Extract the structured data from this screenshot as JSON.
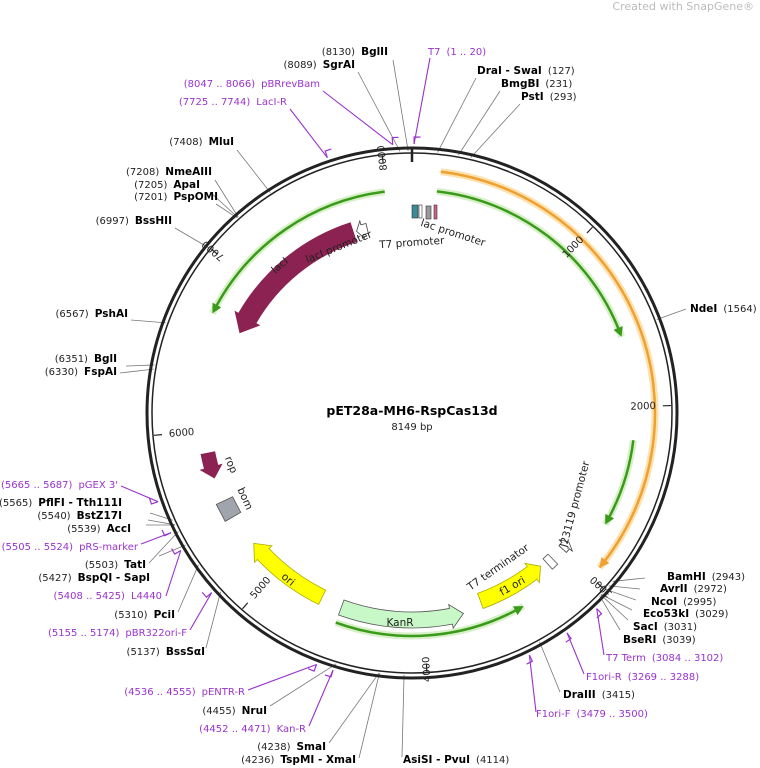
{
  "watermark": {
    "text": "Created with SnapGene®",
    "brand_color": "#f08080"
  },
  "plasmid": {
    "name": "pET28a-MH6-RspCas13d",
    "length_label": "8149 bp",
    "length_bp": 8149
  },
  "ruler": [
    "1000",
    "2000",
    "3000",
    "4000",
    "5000",
    "6000",
    "7000",
    "8000"
  ],
  "colors": {
    "primer": "#9933cc",
    "lacI": "#8b2252",
    "ori": "#ffff00",
    "KanR": "#c8f7c8",
    "orf_arc": "#f0a030",
    "green_arc": "#3a9a1a",
    "bom": "#a0a4ac"
  },
  "sites": [
    {
      "kind": "enzyme",
      "name": "BglII",
      "pos": "8130",
      "bp": 8130
    },
    {
      "kind": "enzyme",
      "name": "SgrAI",
      "pos": "8089",
      "bp": 8089
    },
    {
      "kind": "primer",
      "name": "pBRrevBam",
      "pos": "8047 .. 8066",
      "bp": 8056
    },
    {
      "kind": "primer",
      "name": "LacI-R",
      "pos": "7725 .. 7744",
      "bp": 7734
    },
    {
      "kind": "primer",
      "name": "T7",
      "pos": "1 .. 20",
      "bp": 10
    },
    {
      "kind": "enzyme",
      "name": "DraI  - SwaI",
      "pos": "127",
      "bp": 127
    },
    {
      "kind": "enzyme",
      "name": "BmgBI",
      "pos": "231",
      "bp": 231
    },
    {
      "kind": "enzyme",
      "name": "PstI",
      "pos": "293",
      "bp": 293
    },
    {
      "kind": "enzyme",
      "name": "MluI",
      "pos": "7408",
      "bp": 7408
    },
    {
      "kind": "enzyme",
      "name": "NmeAIII",
      "pos": "7208",
      "bp": 7208
    },
    {
      "kind": "enzyme",
      "name": "ApaI",
      "pos": "7205",
      "bp": 7205
    },
    {
      "kind": "enzyme",
      "name": "PspOMI",
      "pos": "7201",
      "bp": 7201
    },
    {
      "kind": "enzyme",
      "name": "BssHII",
      "pos": "6997",
      "bp": 6997
    },
    {
      "kind": "enzyme",
      "name": "NdeI",
      "pos": "1564",
      "bp": 1564
    },
    {
      "kind": "enzyme",
      "name": "PshAI",
      "pos": "6567",
      "bp": 6567
    },
    {
      "kind": "enzyme",
      "name": "BglI",
      "pos": "6351",
      "bp": 6351
    },
    {
      "kind": "enzyme",
      "name": "FspAI",
      "pos": "6330",
      "bp": 6330
    },
    {
      "kind": "primer",
      "name": "pGEX 3'",
      "pos": "5665 .. 5687",
      "bp": 5676
    },
    {
      "kind": "enzyme",
      "name": "PflFI  - Tth111I",
      "pos": "5565",
      "bp": 5565
    },
    {
      "kind": "enzyme",
      "name": "BstZ17I",
      "pos": "5540",
      "bp": 5540
    },
    {
      "kind": "enzyme",
      "name": "AccI",
      "pos": "5539",
      "bp": 5539
    },
    {
      "kind": "primer",
      "name": "pRS-marker",
      "pos": "5505 .. 5524",
      "bp": 5514
    },
    {
      "kind": "enzyme",
      "name": "TatI",
      "pos": "5503",
      "bp": 5503
    },
    {
      "kind": "enzyme",
      "name": "BspQI  - SapI",
      "pos": "5427",
      "bp": 5427
    },
    {
      "kind": "primer",
      "name": "L4440",
      "pos": "5408 .. 5425",
      "bp": 5416
    },
    {
      "kind": "enzyme",
      "name": "PciI",
      "pos": "5310",
      "bp": 5310
    },
    {
      "kind": "primer",
      "name": "pBR322ori-F",
      "pos": "5155 .. 5174",
      "bp": 5164
    },
    {
      "kind": "enzyme",
      "name": "BssSαI",
      "pos": "5137",
      "bp": 5137
    },
    {
      "kind": "primer",
      "name": "pENTR-R",
      "pos": "4536 .. 4555",
      "bp": 4545
    },
    {
      "kind": "enzyme",
      "name": "NruI",
      "pos": "4455",
      "bp": 4455
    },
    {
      "kind": "primer",
      "name": "Kan-R",
      "pos": "4452 .. 4471",
      "bp": 4461
    },
    {
      "kind": "enzyme",
      "name": "SmaI",
      "pos": "4238",
      "bp": 4238
    },
    {
      "kind": "enzyme",
      "name": "TspMI  - XmaI",
      "pos": "4236",
      "bp": 4236
    },
    {
      "kind": "enzyme",
      "name": "AsiSI  - PvuI",
      "pos": "4114",
      "bp": 4114
    },
    {
      "kind": "enzyme",
      "name": "BamHI",
      "pos": "2943",
      "bp": 2943
    },
    {
      "kind": "enzyme",
      "name": "AvrII",
      "pos": "2972",
      "bp": 2972
    },
    {
      "kind": "enzyme",
      "name": "NcoI",
      "pos": "2995",
      "bp": 2995
    },
    {
      "kind": "enzyme",
      "name": "Eco53kI",
      "pos": "3029",
      "bp": 3029
    },
    {
      "kind": "enzyme",
      "name": "SacI",
      "pos": "3031",
      "bp": 3031
    },
    {
      "kind": "enzyme",
      "name": "BseRI",
      "pos": "3039",
      "bp": 3039
    },
    {
      "kind": "primer",
      "name": "T7 Term",
      "pos": "3084 .. 3102",
      "bp": 3093
    },
    {
      "kind": "primer",
      "name": "F1ori-R",
      "pos": "3269 .. 3288",
      "bp": 3278
    },
    {
      "kind": "enzyme",
      "name": "DraIII",
      "pos": "3415",
      "bp": 3415
    },
    {
      "kind": "primer",
      "name": "F1ori-F",
      "pos": "3479 .. 3500",
      "bp": 3489
    }
  ],
  "features": {
    "lacI": {
      "label": "lacI",
      "start": 7742,
      "end": 6678,
      "direction": "ccw"
    },
    "lacI_promoter": {
      "label": "lacI promoter",
      "start": 7840,
      "end": 7765,
      "direction": "ccw"
    },
    "lac_promoter": {
      "label": "lac promoter"
    },
    "T7_promoter": {
      "label": "T7 promoter"
    },
    "rop": {
      "label": "rop",
      "start": 5860,
      "end": 5700,
      "direction": "ccw"
    },
    "bom": {
      "label": "bom",
      "start": 5430,
      "end": 5545
    },
    "ori": {
      "label": "ori",
      "start": 4663,
      "end": 5218,
      "direction": "cw"
    },
    "KanR": {
      "label": "KanR",
      "start": 4527,
      "end": 3749,
      "direction": "ccw"
    },
    "f1_ori": {
      "label": "f1 ori",
      "start": 3622,
      "end": 3169,
      "direction": "ccw"
    },
    "T7_terminator": {
      "label": "T7 terminator",
      "start": 3080,
      "end": 3125
    },
    "J23119_promoter": {
      "label": "J23119 promoter",
      "start": 2990,
      "end": 2930,
      "direction": "ccw"
    },
    "orf_arc": {
      "start": 154,
      "end": 2931,
      "direction": "cw"
    },
    "green_arcs": [
      {
        "start": 7990,
        "end": 6712,
        "direction": "ccw"
      },
      {
        "start": 145,
        "end": 1585,
        "direction": "cw"
      },
      {
        "start": 2196,
        "end": 2716,
        "direction": "cw"
      },
      {
        "start": 4527,
        "end": 3395,
        "direction": "ccw"
      }
    ]
  }
}
